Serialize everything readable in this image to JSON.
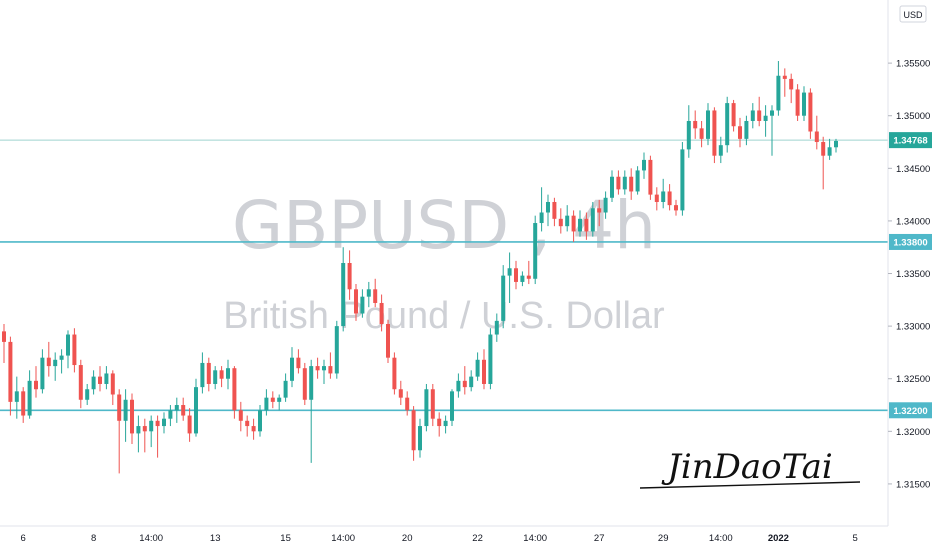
{
  "chart_data": {
    "type": "candlestick",
    "symbol_watermark": "GBPUSD , 4h",
    "subtitle_watermark": "British Pound / U.S. Dollar",
    "currency_label": "USD",
    "signature": "JinDaoTai",
    "ylim": [
      1.311,
      1.361
    ],
    "y_ticks": [
      "1.31500",
      "1.32000",
      "1.32500",
      "1.33000",
      "1.33500",
      "1.34000",
      "1.34500",
      "1.35000",
      "1.35500"
    ],
    "y_tick_values": [
      1.315,
      1.32,
      1.325,
      1.33,
      1.335,
      1.34,
      1.345,
      1.35,
      1.355
    ],
    "x_ticks": [
      "6",
      "8",
      "14:00",
      "13",
      "15",
      "14:00",
      "20",
      "22",
      "14:00",
      "27",
      "29",
      "14:00",
      "2022",
      "5"
    ],
    "x_tick_bold": [
      false,
      false,
      false,
      false,
      false,
      false,
      false,
      false,
      false,
      false,
      false,
      false,
      true,
      false
    ],
    "x_tick_index": [
      3,
      14,
      23,
      33,
      44,
      53,
      63,
      74,
      83,
      93,
      103,
      112,
      121,
      133
    ],
    "current_price": "1.34768",
    "current_price_value": 1.34768,
    "levels": [
      {
        "label": "1.33800",
        "value": 1.338
      },
      {
        "label": "1.32200",
        "value": 1.322
      }
    ],
    "colors": {
      "up": "#26a69a",
      "down": "#ef5350",
      "level": "#4fb8c9",
      "price_line": "#9fd3cf",
      "watermark": "#cfd1d6"
    },
    "candles": [
      [
        1.3295,
        1.3302,
        1.3265,
        1.3285
      ],
      [
        1.3285,
        1.329,
        1.3215,
        1.3228
      ],
      [
        1.3228,
        1.3252,
        1.3212,
        1.3238
      ],
      [
        1.3238,
        1.3242,
        1.3208,
        1.3215
      ],
      [
        1.3215,
        1.3258,
        1.3212,
        1.3248
      ],
      [
        1.3248,
        1.3262,
        1.3232,
        1.324
      ],
      [
        1.324,
        1.3278,
        1.3236,
        1.327
      ],
      [
        1.327,
        1.3285,
        1.3252,
        1.3262
      ],
      [
        1.3262,
        1.3275,
        1.3248,
        1.3268
      ],
      [
        1.3268,
        1.3278,
        1.3255,
        1.3272
      ],
      [
        1.3272,
        1.3296,
        1.326,
        1.3292
      ],
      [
        1.3292,
        1.3298,
        1.3256,
        1.3263
      ],
      [
        1.3263,
        1.3268,
        1.3222,
        1.323
      ],
      [
        1.323,
        1.3245,
        1.3225,
        1.324
      ],
      [
        1.324,
        1.3258,
        1.3235,
        1.3252
      ],
      [
        1.3252,
        1.3262,
        1.3238,
        1.3245
      ],
      [
        1.3245,
        1.3262,
        1.324,
        1.3255
      ],
      [
        1.3255,
        1.3258,
        1.3225,
        1.3235
      ],
      [
        1.3235,
        1.324,
        1.316,
        1.321
      ],
      [
        1.321,
        1.324,
        1.319,
        1.323
      ],
      [
        1.323,
        1.3236,
        1.3188,
        1.3198
      ],
      [
        1.3198,
        1.3215,
        1.318,
        1.3205
      ],
      [
        1.3205,
        1.3212,
        1.318,
        1.32
      ],
      [
        1.32,
        1.3215,
        1.3185,
        1.321
      ],
      [
        1.321,
        1.3215,
        1.3175,
        1.3205
      ],
      [
        1.3205,
        1.3218,
        1.3198,
        1.3212
      ],
      [
        1.3212,
        1.3225,
        1.3205,
        1.322
      ],
      [
        1.322,
        1.3232,
        1.3208,
        1.3225
      ],
      [
        1.3225,
        1.3232,
        1.321,
        1.3215
      ],
      [
        1.3215,
        1.3222,
        1.319,
        1.3198
      ],
      [
        1.3198,
        1.325,
        1.3195,
        1.3242
      ],
      [
        1.3242,
        1.3275,
        1.3236,
        1.3265
      ],
      [
        1.3265,
        1.327,
        1.3238,
        1.3245
      ],
      [
        1.3245,
        1.3262,
        1.324,
        1.3258
      ],
      [
        1.3258,
        1.3262,
        1.3242,
        1.325
      ],
      [
        1.325,
        1.3268,
        1.324,
        1.326
      ],
      [
        1.326,
        1.3262,
        1.3212,
        1.322
      ],
      [
        1.322,
        1.3228,
        1.32,
        1.321
      ],
      [
        1.321,
        1.3215,
        1.3195,
        1.3205
      ],
      [
        1.3205,
        1.3212,
        1.3192,
        1.32
      ],
      [
        1.32,
        1.3225,
        1.3195,
        1.322
      ],
      [
        1.322,
        1.324,
        1.3215,
        1.3232
      ],
      [
        1.3232,
        1.3238,
        1.3222,
        1.3228
      ],
      [
        1.3228,
        1.3235,
        1.322,
        1.3232
      ],
      [
        1.3232,
        1.3255,
        1.3228,
        1.3248
      ],
      [
        1.3248,
        1.328,
        1.3242,
        1.327
      ],
      [
        1.327,
        1.3278,
        1.3255,
        1.326
      ],
      [
        1.326,
        1.3265,
        1.3225,
        1.323
      ],
      [
        1.323,
        1.3268,
        1.317,
        1.3262
      ],
      [
        1.3262,
        1.327,
        1.325,
        1.3258
      ],
      [
        1.3258,
        1.3268,
        1.3245,
        1.3262
      ],
      [
        1.3262,
        1.3275,
        1.325,
        1.3255
      ],
      [
        1.3255,
        1.3305,
        1.325,
        1.33
      ],
      [
        1.33,
        1.3375,
        1.3295,
        1.336
      ],
      [
        1.336,
        1.3372,
        1.3325,
        1.3335
      ],
      [
        1.3335,
        1.334,
        1.3305,
        1.3312
      ],
      [
        1.3312,
        1.3335,
        1.3308,
        1.3328
      ],
      [
        1.3328,
        1.3342,
        1.3318,
        1.3335
      ],
      [
        1.3335,
        1.3345,
        1.3318,
        1.3322
      ],
      [
        1.3322,
        1.333,
        1.3295,
        1.3302
      ],
      [
        1.3302,
        1.3306,
        1.3265,
        1.327
      ],
      [
        1.327,
        1.3275,
        1.3235,
        1.324
      ],
      [
        1.324,
        1.3248,
        1.3225,
        1.3232
      ],
      [
        1.3232,
        1.3238,
        1.3215,
        1.322
      ],
      [
        1.322,
        1.3224,
        1.3172,
        1.3182
      ],
      [
        1.3182,
        1.3212,
        1.3175,
        1.3205
      ],
      [
        1.3205,
        1.3245,
        1.32,
        1.324
      ],
      [
        1.324,
        1.3245,
        1.3205,
        1.3212
      ],
      [
        1.3212,
        1.3218,
        1.3195,
        1.3205
      ],
      [
        1.3205,
        1.3215,
        1.3198,
        1.321
      ],
      [
        1.321,
        1.324,
        1.3205,
        1.3238
      ],
      [
        1.3238,
        1.3255,
        1.3232,
        1.3248
      ],
      [
        1.3248,
        1.3262,
        1.3235,
        1.3242
      ],
      [
        1.3242,
        1.3258,
        1.3238,
        1.3252
      ],
      [
        1.3252,
        1.3275,
        1.3248,
        1.3268
      ],
      [
        1.3268,
        1.3278,
        1.324,
        1.3245
      ],
      [
        1.3245,
        1.3298,
        1.324,
        1.3292
      ],
      [
        1.3292,
        1.3312,
        1.3285,
        1.3305
      ],
      [
        1.3305,
        1.3358,
        1.3298,
        1.3348
      ],
      [
        1.3348,
        1.337,
        1.3322,
        1.3355
      ],
      [
        1.3355,
        1.3362,
        1.3335,
        1.3342
      ],
      [
        1.3342,
        1.3352,
        1.3338,
        1.3348
      ],
      [
        1.3348,
        1.3362,
        1.334,
        1.3345
      ],
      [
        1.3345,
        1.3405,
        1.334,
        1.3398
      ],
      [
        1.3398,
        1.3432,
        1.339,
        1.3408
      ],
      [
        1.3408,
        1.3425,
        1.3395,
        1.3418
      ],
      [
        1.3418,
        1.3422,
        1.3395,
        1.3402
      ],
      [
        1.3402,
        1.3412,
        1.3388,
        1.3395
      ],
      [
        1.3395,
        1.3415,
        1.339,
        1.3405
      ],
      [
        1.3405,
        1.341,
        1.338,
        1.339
      ],
      [
        1.339,
        1.341,
        1.3385,
        1.3402
      ],
      [
        1.3402,
        1.3408,
        1.3382,
        1.339
      ],
      [
        1.339,
        1.3418,
        1.3385,
        1.3412
      ],
      [
        1.3412,
        1.342,
        1.3395,
        1.3408
      ],
      [
        1.3408,
        1.3428,
        1.3402,
        1.3422
      ],
      [
        1.3422,
        1.3448,
        1.3418,
        1.3442
      ],
      [
        1.3442,
        1.3448,
        1.3425,
        1.343
      ],
      [
        1.343,
        1.3448,
        1.3425,
        1.3442
      ],
      [
        1.3442,
        1.345,
        1.342,
        1.3428
      ],
      [
        1.3428,
        1.3452,
        1.3425,
        1.3448
      ],
      [
        1.3448,
        1.3465,
        1.344,
        1.3458
      ],
      [
        1.3458,
        1.3462,
        1.342,
        1.3425
      ],
      [
        1.3425,
        1.3432,
        1.341,
        1.3418
      ],
      [
        1.3418,
        1.344,
        1.3412,
        1.3428
      ],
      [
        1.3428,
        1.3435,
        1.341,
        1.3415
      ],
      [
        1.3415,
        1.342,
        1.3405,
        1.341
      ],
      [
        1.341,
        1.3475,
        1.3405,
        1.3468
      ],
      [
        1.3468,
        1.351,
        1.346,
        1.3495
      ],
      [
        1.3495,
        1.3505,
        1.3478,
        1.3488
      ],
      [
        1.3488,
        1.3495,
        1.347,
        1.3478
      ],
      [
        1.3478,
        1.3512,
        1.3472,
        1.3505
      ],
      [
        1.3505,
        1.3508,
        1.3455,
        1.3462
      ],
      [
        1.3462,
        1.348,
        1.3455,
        1.3472
      ],
      [
        1.3472,
        1.3518,
        1.3465,
        1.3512
      ],
      [
        1.3512,
        1.3515,
        1.3485,
        1.349
      ],
      [
        1.349,
        1.3498,
        1.347,
        1.3478
      ],
      [
        1.3478,
        1.35,
        1.3472,
        1.3495
      ],
      [
        1.3495,
        1.3512,
        1.3488,
        1.3505
      ],
      [
        1.3505,
        1.3518,
        1.349,
        1.3495
      ],
      [
        1.3495,
        1.351,
        1.348,
        1.35
      ],
      [
        1.35,
        1.351,
        1.3462,
        1.3505
      ],
      [
        1.3505,
        1.3552,
        1.35,
        1.3538
      ],
      [
        1.3538,
        1.3545,
        1.3518,
        1.3535
      ],
      [
        1.3535,
        1.354,
        1.3512,
        1.3525
      ],
      [
        1.3525,
        1.353,
        1.3495,
        1.35
      ],
      [
        1.35,
        1.3528,
        1.3495,
        1.3522
      ],
      [
        1.3522,
        1.3526,
        1.3478,
        1.3485
      ],
      [
        1.3485,
        1.35,
        1.3468,
        1.3475
      ],
      [
        1.3475,
        1.348,
        1.343,
        1.3462
      ],
      [
        1.3462,
        1.3478,
        1.3458,
        1.347
      ],
      [
        1.347,
        1.3478,
        1.3465,
        1.3476
      ]
    ]
  }
}
